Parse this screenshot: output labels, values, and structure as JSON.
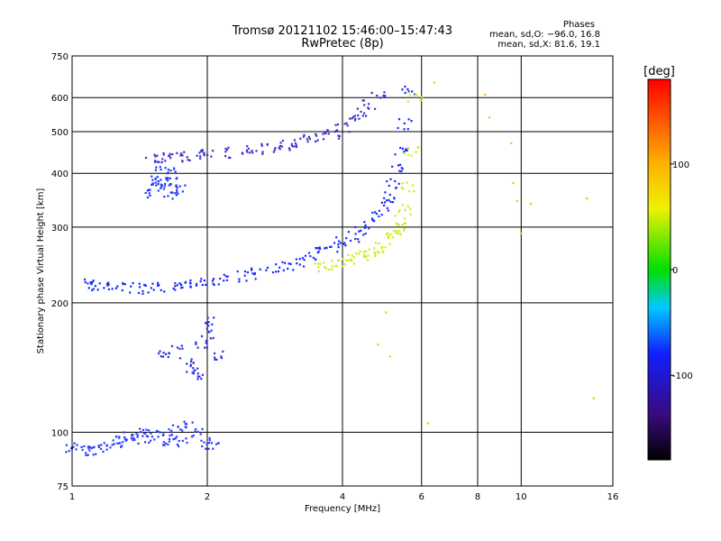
{
  "chart_data": {
    "type": "scatter",
    "title": "Tromsø 20121102 15:46:00–15:47:43",
    "subtitle": "RwPretec (8p)",
    "xlabel": "Frequency [MHz]",
    "ylabel": "Stationary phase Virtual Height [km]",
    "x_scale": "log",
    "y_scale": "log",
    "xlim": [
      1,
      16
    ],
    "ylim": [
      75,
      750
    ],
    "x_ticks": [
      1,
      2,
      4,
      6,
      8,
      10,
      16
    ],
    "y_ticks": [
      75,
      100,
      200,
      300,
      400,
      500,
      600,
      750
    ],
    "grid": true,
    "colorbar": {
      "label": "[deg]",
      "range": [
        -180,
        180
      ],
      "ticks": [
        -100,
        0,
        100
      ],
      "colormap": "rainbow"
    },
    "stats": {
      "title": "Phases",
      "line_o": "mean, sd,O: −96.0, 16.8",
      "line_x": "mean, sd,X: 81.6, 19.1"
    },
    "series": [
      {
        "x": [
          1.0,
          1.05,
          1.1,
          1.15,
          1.2,
          1.25,
          1.3,
          1.35,
          1.4,
          1.45,
          1.5,
          1.55,
          1.6,
          1.65,
          1.7,
          1.75,
          1.8,
          1.9,
          2.0,
          2.05
        ],
        "y": [
          92,
          91,
          91,
          91,
          93,
          95,
          97,
          98,
          96,
          99,
          97,
          100,
          96,
          98,
          101,
          95,
          103,
          99,
          94,
          95
        ],
        "color": "#2a3cff"
      },
      {
        "x": [
          1.1,
          1.12,
          1.2,
          1.3,
          1.4,
          1.5,
          1.6,
          1.7,
          1.8,
          1.9,
          2.0,
          2.2,
          2.4,
          2.6,
          2.8,
          3.0,
          3.2,
          3.4,
          3.6,
          3.8,
          4.0,
          4.2,
          4.4,
          4.6,
          4.8,
          5.0,
          5.1,
          5.2,
          5.3,
          5.4,
          5.5,
          5.6
        ],
        "y": [
          222,
          220,
          217,
          216,
          216,
          217,
          218,
          219,
          220,
          222,
          224,
          227,
          230,
          234,
          239,
          244,
          250,
          256,
          263,
          270,
          278,
          285,
          295,
          305,
          318,
          335,
          355,
          380,
          410,
          450,
          520,
          620
        ],
        "color": "#1a2cff"
      },
      {
        "x": [
          3.6,
          3.8,
          4.0,
          4.2,
          4.4,
          4.6,
          4.8,
          5.0,
          5.2,
          5.3,
          5.4,
          5.5,
          5.6,
          5.7,
          5.8
        ],
        "y": [
          243,
          246,
          249,
          253,
          257,
          262,
          268,
          276,
          286,
          296,
          310,
          330,
          370,
          450,
          600
        ],
        "color": "#c8f014"
      },
      {
        "x": [
          1.5,
          1.6,
          1.7,
          1.8,
          1.9,
          2.0,
          2.2,
          2.4,
          2.6,
          2.8,
          3.0,
          3.2,
          3.4,
          3.6,
          3.8,
          4.0,
          4.2,
          4.4,
          4.6,
          4.8
        ],
        "y": [
          432,
          433,
          435,
          437,
          440,
          442,
          446,
          450,
          455,
          460,
          466,
          472,
          478,
          485,
          495,
          510,
          530,
          550,
          575,
          600
        ],
        "color": "#3a30d0"
      },
      {
        "x": [
          1.5,
          1.52,
          1.55,
          1.58,
          1.6,
          1.62,
          1.65,
          1.68,
          1.7,
          1.72
        ],
        "y": [
          360,
          375,
          390,
          405,
          370,
          385,
          355,
          400,
          380,
          365
        ],
        "color": "#2438ff"
      },
      {
        "x": [
          1.6,
          1.7,
          1.8,
          1.85,
          1.9,
          1.95,
          2.0,
          2.05,
          2.1
        ],
        "y": [
          150,
          155,
          145,
          140,
          135,
          160,
          170,
          180,
          150
        ],
        "color": "#2a30e0"
      },
      {
        "x": [
          6.4,
          8.3,
          8.5,
          9.5,
          9.6,
          9.8,
          10.0,
          10.5,
          14.0,
          14.5,
          5.0,
          5.1,
          4.8,
          6.2
        ],
        "y": [
          650,
          610,
          540,
          470,
          380,
          345,
          290,
          340,
          350,
          120,
          190,
          150,
          160,
          105
        ],
        "color": "#ffc000"
      }
    ]
  }
}
